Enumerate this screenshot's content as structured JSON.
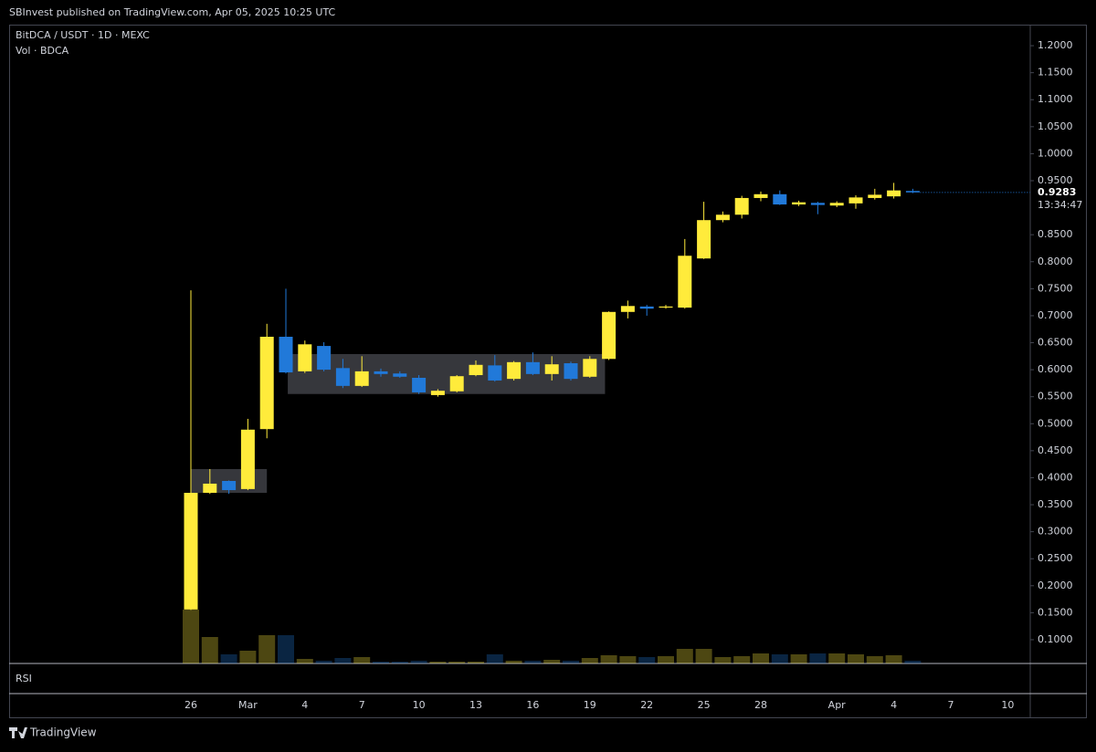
{
  "header": "SBInvest published on TradingView.com, Apr 05, 2025 10:25 UTC",
  "footer": "TradingView",
  "chart_data": {
    "type": "candlestick",
    "symbol": "BitDCA / USDT · 1D · MEXC",
    "volume_label": "Vol · BDCA",
    "rsi_label": "RSI",
    "countdown": "13:34:47",
    "up_color": "#ffeb3b",
    "down_color": "#2179d9",
    "categories": [
      "26",
      null,
      null,
      "Mar",
      null,
      null,
      "4",
      null,
      null,
      "7",
      null,
      null,
      "10",
      null,
      null,
      "13",
      null,
      null,
      "16",
      null,
      null,
      "19",
      null,
      null,
      "22",
      null,
      null,
      "25",
      null,
      null,
      "28",
      null,
      null,
      null,
      "Apr",
      null,
      null,
      "4",
      null,
      null,
      "7",
      null,
      null,
      "10"
    ],
    "open": [
      0.156,
      0.372,
      0.394,
      0.379,
      0.49,
      0.661,
      0.597,
      0.644,
      0.603,
      0.57,
      0.597,
      0.593,
      0.585,
      0.553,
      0.56,
      0.59,
      0.608,
      0.583,
      0.614,
      0.592,
      0.612,
      0.587,
      0.62,
      0.707,
      0.717,
      0.715,
      0.715,
      0.806,
      0.877,
      0.887,
      0.918,
      0.925,
      0.906,
      0.909,
      0.904,
      0.908,
      0.918,
      0.921,
      0.931,
      null,
      null,
      null,
      null,
      null
    ],
    "high": [
      0.747,
      0.416,
      0.395,
      0.509,
      0.685,
      0.75,
      0.654,
      0.651,
      0.62,
      0.625,
      0.602,
      0.597,
      0.59,
      0.564,
      0.59,
      0.617,
      0.627,
      0.616,
      0.632,
      0.625,
      0.615,
      0.625,
      0.708,
      0.728,
      0.72,
      0.72,
      0.842,
      0.911,
      0.893,
      0.922,
      0.93,
      0.932,
      0.913,
      0.911,
      0.912,
      0.923,
      0.935,
      0.946,
      0.935,
      null,
      null,
      null,
      null,
      null
    ],
    "low": [
      0.155,
      0.37,
      0.37,
      0.377,
      0.473,
      0.593,
      0.594,
      0.597,
      0.566,
      0.568,
      0.587,
      0.585,
      0.555,
      0.55,
      0.558,
      0.588,
      0.578,
      0.58,
      0.59,
      0.58,
      0.58,
      0.585,
      0.618,
      0.695,
      0.7,
      0.713,
      0.713,
      0.805,
      0.873,
      0.88,
      0.912,
      0.905,
      0.903,
      0.888,
      0.901,
      0.898,
      0.915,
      0.917,
      0.927,
      null,
      null,
      null,
      null,
      null
    ],
    "close": [
      0.372,
      0.389,
      0.377,
      0.489,
      0.661,
      0.595,
      0.647,
      0.6,
      0.57,
      0.597,
      0.592,
      0.587,
      0.558,
      0.561,
      0.588,
      0.609,
      0.58,
      0.614,
      0.592,
      0.61,
      0.583,
      0.62,
      0.707,
      0.718,
      0.713,
      0.717,
      0.811,
      0.877,
      0.887,
      0.918,
      0.925,
      0.906,
      0.91,
      0.905,
      0.909,
      0.919,
      0.924,
      0.932,
      0.9283,
      null,
      null,
      null,
      null,
      null
    ],
    "volume": [
      59,
      29,
      10,
      14,
      31,
      31,
      5,
      3,
      6,
      7,
      2,
      2,
      3,
      2,
      2,
      2,
      10,
      3,
      3,
      4,
      3,
      6,
      9,
      8,
      7,
      8,
      16,
      16,
      7,
      8,
      11,
      10,
      10,
      11,
      11,
      10,
      8,
      9,
      3,
      null,
      null,
      null,
      null,
      null
    ],
    "zones": [
      {
        "from": 0,
        "to": 4,
        "low": 0.372,
        "high": 0.416
      },
      {
        "from": 5.1,
        "to": 21.8,
        "low": 0.555,
        "high": 0.629
      }
    ],
    "ylim": [
      0.056,
      1.239
    ],
    "yticks": [
      {
        "value": 1.2,
        "label": "1.2000"
      },
      {
        "value": 1.15,
        "label": "1.1500"
      },
      {
        "value": 1.1,
        "label": "1.1000"
      },
      {
        "value": 1.05,
        "label": "1.0500"
      },
      {
        "value": 1.0,
        "label": "1.0000"
      },
      {
        "value": 0.95,
        "label": "0.9500"
      },
      {
        "value": 0.85,
        "label": "0.8500"
      },
      {
        "value": 0.8,
        "label": "0.8000"
      },
      {
        "value": 0.75,
        "label": "0.7500"
      },
      {
        "value": 0.7,
        "label": "0.7000"
      },
      {
        "value": 0.65,
        "label": "0.6500"
      },
      {
        "value": 0.6,
        "label": "0.6000"
      },
      {
        "value": 0.55,
        "label": "0.5500"
      },
      {
        "value": 0.5,
        "label": "0.5000"
      },
      {
        "value": 0.45,
        "label": "0.4500"
      },
      {
        "value": 0.4,
        "label": "0.4000"
      },
      {
        "value": 0.35,
        "label": "0.3500"
      },
      {
        "value": 0.3,
        "label": "0.3000"
      },
      {
        "value": 0.25,
        "label": "0.2500"
      },
      {
        "value": 0.2,
        "label": "0.2000"
      },
      {
        "value": 0.15,
        "label": "0.1500"
      },
      {
        "value": 0.1,
        "label": "0.1000"
      }
    ]
  }
}
